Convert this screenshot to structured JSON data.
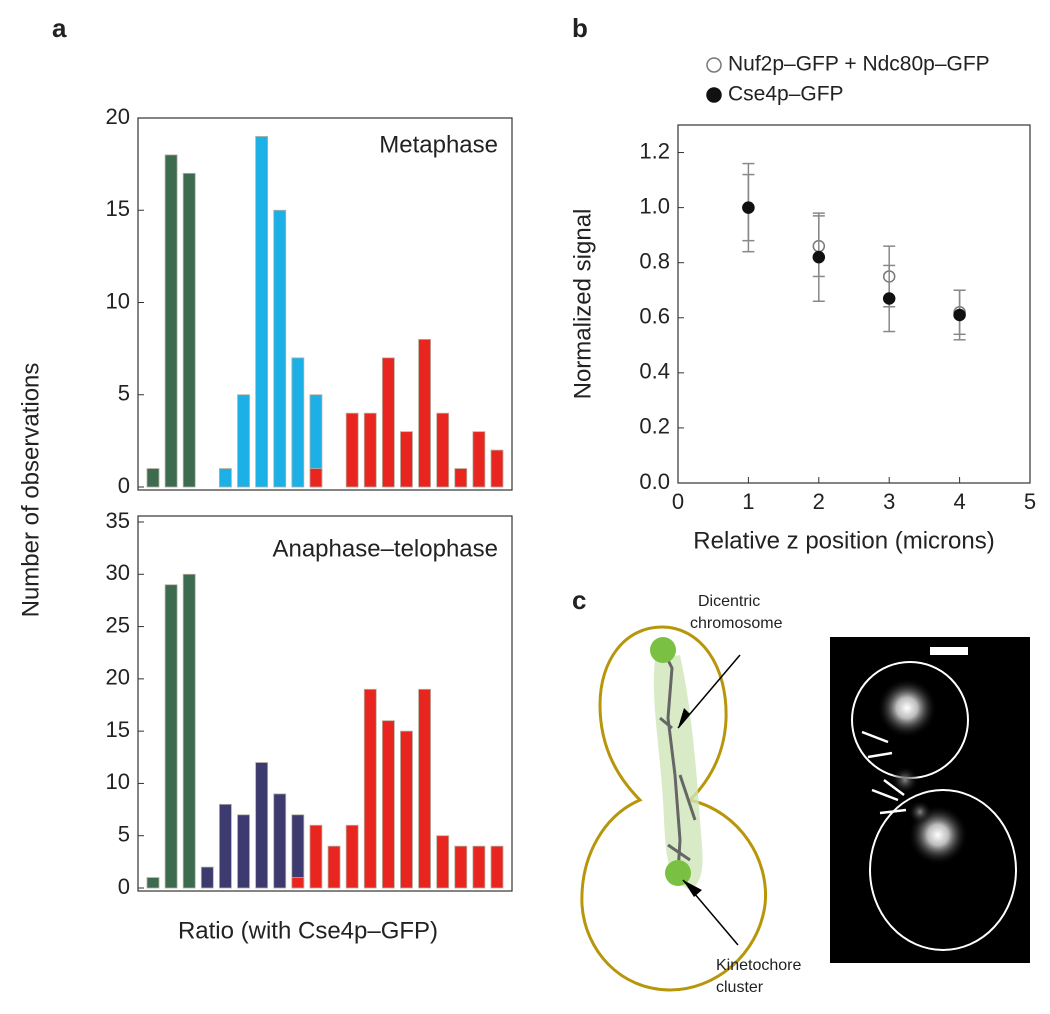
{
  "panel_labels": [
    "a",
    "b",
    "c"
  ],
  "chart_data": [
    {
      "type": "bar",
      "title": "Metaphase",
      "ylabel": "Number of observations",
      "categories": [
        null,
        null,
        null,
        null,
        null,
        null,
        null,
        null,
        null,
        null,
        null,
        null,
        null,
        null,
        null,
        null,
        null,
        null,
        null,
        null
      ],
      "series": [
        {
          "color": "#3d6b50",
          "values": [
            1,
            18,
            17,
            null,
            null,
            null,
            null,
            null,
            null,
            null,
            null,
            null,
            null,
            null,
            null,
            null,
            null,
            null,
            null,
            null
          ]
        },
        {
          "color": "#1cb0e6",
          "values": [
            null,
            null,
            null,
            null,
            1,
            5,
            19,
            15,
            7,
            5,
            null,
            null,
            null,
            null,
            null,
            null,
            null,
            null,
            null,
            null
          ]
        },
        {
          "color": "#e8251f",
          "values": [
            null,
            null,
            null,
            null,
            null,
            null,
            null,
            null,
            null,
            1,
            null,
            4,
            4,
            7,
            3,
            8,
            4,
            1,
            3,
            2
          ]
        }
      ],
      "ylim": [
        0,
        20
      ],
      "yticks": [
        0,
        5,
        10,
        15,
        20
      ]
    },
    {
      "type": "bar",
      "title": "Anaphase–telophase",
      "xlabel": "Ratio (with Cse4p–GFP)",
      "categories": [
        null,
        null,
        null,
        null,
        null,
        null,
        null,
        null,
        null,
        null,
        null,
        null,
        null,
        null,
        null,
        null,
        null,
        null,
        null,
        null
      ],
      "series": [
        {
          "color": "#3d6b50",
          "values": [
            1,
            29,
            30,
            null,
            null,
            null,
            null,
            null,
            null,
            null,
            null,
            null,
            null,
            null,
            null,
            null,
            null,
            null,
            null,
            null
          ]
        },
        {
          "color": "#3c3a6e",
          "values": [
            null,
            null,
            null,
            2,
            8,
            7,
            12,
            9,
            7,
            null,
            null,
            null,
            null,
            null,
            null,
            null,
            null,
            null,
            null,
            null
          ]
        },
        {
          "color": "#e8251f",
          "values": [
            null,
            null,
            null,
            null,
            null,
            null,
            null,
            null,
            1,
            6,
            4,
            6,
            19,
            16,
            15,
            19,
            5,
            4,
            4,
            4
          ]
        }
      ],
      "ylim": [
        0,
        35
      ],
      "yticks": [
        0,
        5,
        10,
        15,
        20,
        25,
        30,
        35
      ]
    },
    {
      "type": "scatter",
      "ylabel": "Normalized signal",
      "xlabel": "Relative z position (microns)",
      "series": [
        {
          "name": "Nuf2p–GFP + Ndc80p–GFP",
          "marker": "open",
          "color": "#777777",
          "x": [
            1,
            2,
            3,
            4
          ],
          "values": [
            1.0,
            0.86,
            0.75,
            0.62
          ],
          "errors": [
            0.16,
            0.11,
            0.11,
            0.08
          ]
        },
        {
          "name": "Cse4p–GFP",
          "marker": "filled",
          "color": "#111111",
          "x": [
            1,
            2,
            3,
            4
          ],
          "values": [
            1.0,
            0.82,
            0.67,
            0.61
          ],
          "errors": [
            0.12,
            0.16,
            0.12,
            0.09
          ]
        }
      ],
      "xlim": [
        0,
        5
      ],
      "xticks": [
        0,
        1,
        2,
        3,
        4,
        5
      ],
      "ylim": [
        0,
        1.3
      ],
      "yticks": [
        {
          "value": 0,
          "label": "0.0"
        },
        0.2,
        0.4,
        0.6,
        0.8,
        {
          "value": 1,
          "label": "1.0"
        },
        1.2
      ]
    }
  ],
  "diagram": {
    "chromosome_label": [
      "Dicentric",
      "chromosome"
    ],
    "kinetochore_label": [
      "Kinetochore",
      "cluster"
    ]
  }
}
